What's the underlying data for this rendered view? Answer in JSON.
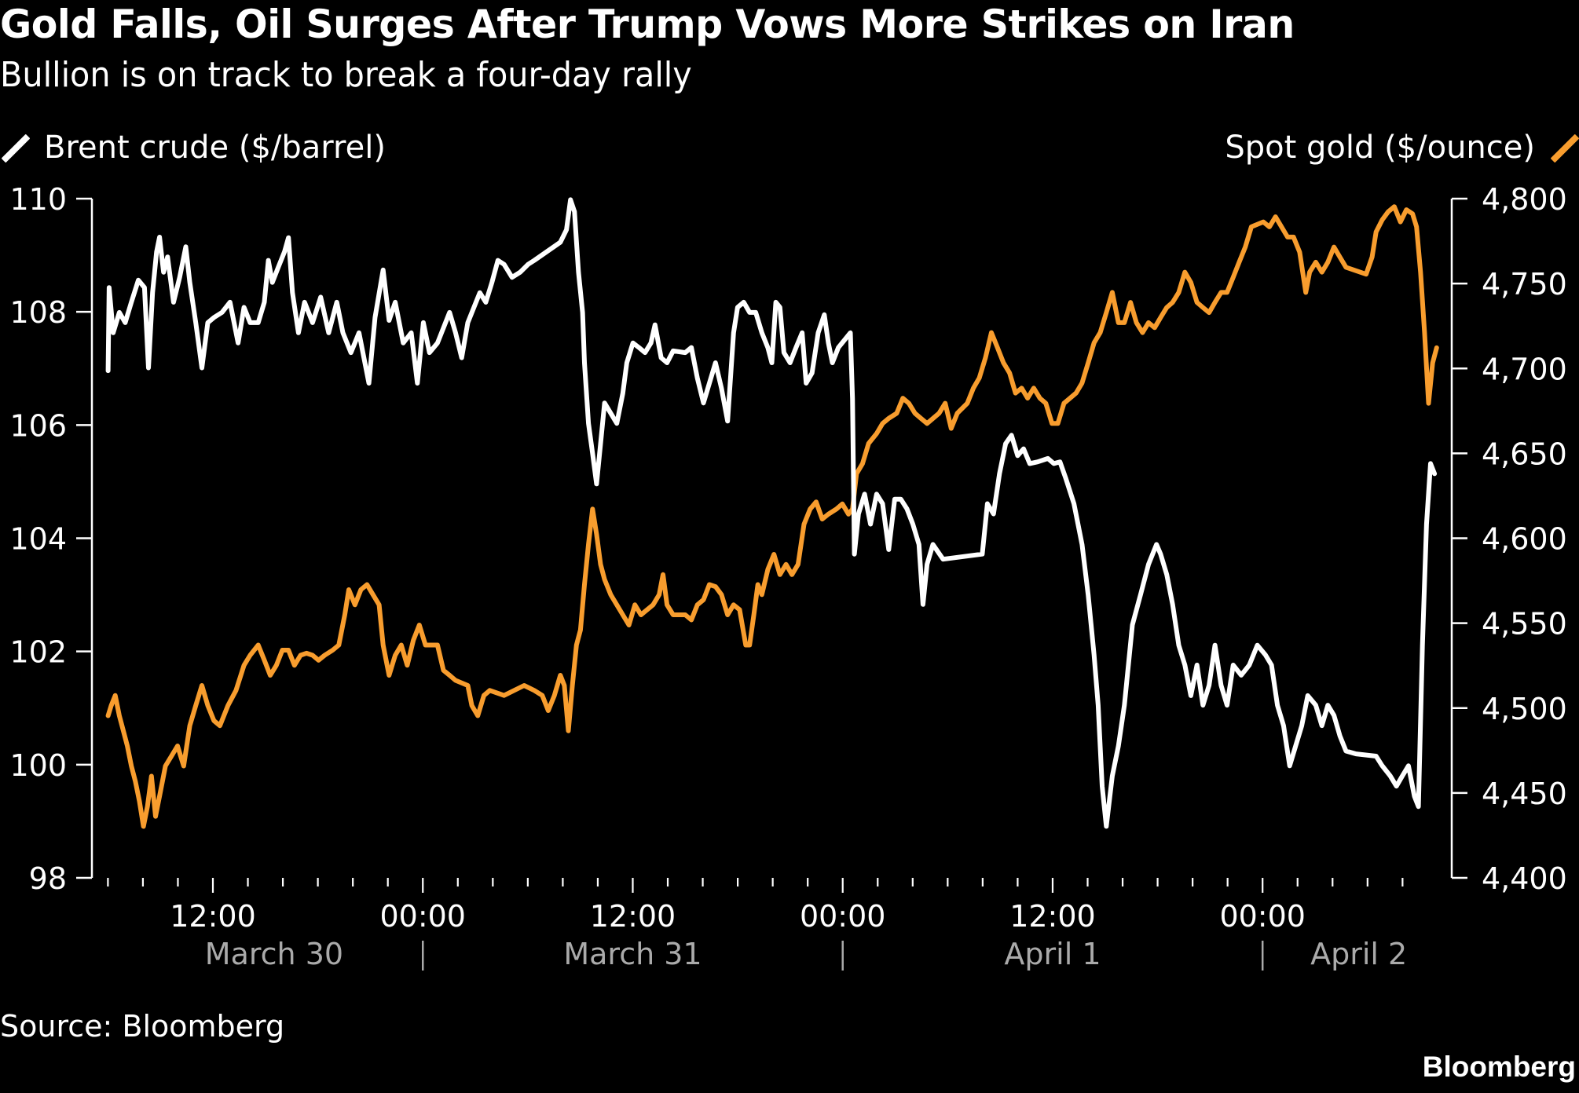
{
  "header": {
    "title": "Gold Falls, Oil Surges After Trump Vows More Strikes on Iran",
    "subtitle": "Bullion is on track to break a four-day rally"
  },
  "legend": {
    "left": {
      "label": "Brent crude ($/barrel)",
      "color": "#FFFFFF",
      "icon": "diagonal-line-swatch"
    },
    "right": {
      "label": "Spot gold ($/ounce)",
      "color": "#F89D2E",
      "icon": "diagonal-line-swatch"
    }
  },
  "footer": {
    "source": "Source: Bloomberg",
    "logo": "Bloomberg"
  },
  "chart_data": {
    "type": "line",
    "title": "Gold Falls, Oil Surges After Trump Vows More Strikes on Iran",
    "subtitle": "Bullion is on track to break a four-day rally",
    "x_unit": "hours since 00:00 March 30",
    "xlim": [
      5.2,
      83.0
    ],
    "x_ticks": [
      {
        "t": 12,
        "label": "12:00"
      },
      {
        "t": 24,
        "label": "00:00"
      },
      {
        "t": 36,
        "label": "12:00"
      },
      {
        "t": 48,
        "label": "00:00"
      },
      {
        "t": 60,
        "label": "12:00"
      },
      {
        "t": 72,
        "label": "00:00"
      }
    ],
    "minor_tick_step_hours": 2,
    "minor_tick_range": [
      6,
      80
    ],
    "date_labels": [
      {
        "t": 15.5,
        "label": "March 30"
      },
      {
        "t": 36,
        "label": "March 31"
      },
      {
        "t": 60,
        "label": "April 1"
      },
      {
        "t": 77.5,
        "label": "April 2"
      }
    ],
    "date_separators": [
      24,
      48,
      72
    ],
    "left_axis": {
      "label": "Brent crude ($/barrel)",
      "ylim": [
        98,
        110
      ],
      "ticks": [
        {
          "v": 98,
          "label": "98"
        },
        {
          "v": 100,
          "label": "100"
        },
        {
          "v": 102,
          "label": "102"
        },
        {
          "v": 104,
          "label": "104"
        },
        {
          "v": 106,
          "label": "106"
        },
        {
          "v": 108,
          "label": "108"
        },
        {
          "v": 110,
          "label": "110"
        }
      ]
    },
    "right_axis": {
      "label": "Spot gold ($/ounce)",
      "ylim": [
        4400,
        4800
      ],
      "ticks": [
        {
          "v": 4400,
          "label": "4,400"
        },
        {
          "v": 4450,
          "label": "4,450"
        },
        {
          "v": 4500,
          "label": "4,500"
        },
        {
          "v": 4550,
          "label": "4,550"
        },
        {
          "v": 4600,
          "label": "4,600"
        },
        {
          "v": 4650,
          "label": "4,650"
        },
        {
          "v": 4700,
          "label": "4,700"
        },
        {
          "v": 4750,
          "label": "4,750"
        },
        {
          "v": 4800,
          "label": "4,800"
        }
      ]
    },
    "grid": false,
    "legend_placement": "top",
    "series": [
      {
        "name": "Brent crude ($/barrel)",
        "axis": "left",
        "color": "#FFFFFF",
        "x": [
          6.01,
          6.07,
          6.3,
          6.65,
          6.99,
          7.34,
          7.74,
          8.09,
          8.32,
          8.55,
          8.78,
          8.95,
          9.18,
          9.41,
          9.75,
          10.1,
          10.45,
          10.68,
          11.02,
          11.37,
          11.71,
          12.06,
          12.52,
          12.98,
          13.44,
          13.78,
          14.13,
          14.59,
          14.94,
          15.17,
          15.4,
          15.74,
          16.09,
          16.32,
          16.55,
          16.89,
          17.24,
          17.7,
          18.16,
          18.62,
          19.08,
          19.43,
          19.89,
          20.35,
          20.92,
          21.27,
          21.73,
          22.07,
          22.42,
          22.88,
          23.34,
          23.69,
          24.03,
          24.38,
          24.84,
          25.53,
          25.87,
          26.22,
          26.57,
          27.26,
          27.6,
          27.95,
          28.29,
          28.64,
          29.1,
          29.56,
          30.02,
          30.37,
          31.86,
          32.21,
          32.44,
          32.67,
          32.9,
          33.13,
          33.24,
          33.47,
          33.7,
          33.93,
          34.16,
          34.39,
          34.74,
          35.09,
          35.43,
          35.66,
          36.01,
          36.35,
          36.7,
          37.04,
          37.27,
          37.62,
          37.96,
          38.31,
          39.0,
          39.35,
          39.69,
          40.04,
          40.38,
          40.73,
          41.07,
          41.42,
          41.76,
          41.99,
          42.34,
          42.68,
          43.03,
          43.38,
          43.72,
          43.95,
          44.18,
          44.41,
          44.64,
          44.99,
          45.33,
          45.68,
          45.91,
          46.25,
          46.6,
          46.95,
          47.18,
          47.41,
          47.75,
          48.44,
          48.56,
          48.67,
          48.9,
          49.25,
          49.59,
          49.94,
          50.28,
          50.63,
          50.97,
          51.32,
          51.67,
          52.01,
          52.36,
          52.59,
          52.82,
          53.16,
          53.74,
          55.98,
          56.27,
          56.62,
          56.96,
          57.31,
          57.65,
          58.0,
          58.34,
          58.69,
          59.15,
          59.73,
          60.07,
          60.42,
          60.76,
          61.22,
          61.68,
          62.03,
          62.37,
          62.6,
          62.83,
          63.07,
          63.41,
          63.76,
          64.1,
          64.56,
          65.02,
          65.48,
          65.94,
          66.17,
          66.52,
          66.86,
          67.21,
          67.56,
          67.9,
          68.25,
          68.59,
          68.94,
          69.28,
          69.63,
          69.97,
          70.32,
          70.78,
          71.24,
          71.7,
          72.16,
          72.51,
          72.85,
          73.2,
          73.55,
          73.89,
          74.24,
          74.58,
          75.04,
          75.39,
          75.73,
          76.08,
          76.42,
          76.77,
          77.34,
          78.49,
          78.84,
          79.3,
          79.65,
          79.99,
          80.34,
          80.68,
          80.91,
          81.14,
          81.37,
          81.6,
          81.83
        ],
        "values": [
          106.96,
          108.43,
          107.63,
          107.99,
          107.81,
          108.17,
          108.56,
          108.43,
          107.01,
          108.34,
          109.06,
          109.32,
          108.7,
          108.97,
          108.17,
          108.61,
          109.15,
          108.52,
          107.81,
          107.01,
          107.81,
          107.9,
          107.99,
          108.17,
          107.45,
          108.08,
          107.81,
          107.81,
          108.17,
          108.91,
          108.52,
          108.79,
          109.06,
          109.31,
          108.34,
          107.63,
          108.17,
          107.81,
          108.26,
          107.63,
          108.17,
          107.63,
          107.28,
          107.63,
          106.74,
          107.9,
          108.74,
          107.85,
          108.17,
          107.45,
          107.63,
          106.74,
          107.81,
          107.28,
          107.45,
          107.99,
          107.63,
          107.19,
          107.81,
          108.34,
          108.17,
          108.52,
          108.91,
          108.84,
          108.61,
          108.7,
          108.84,
          108.91,
          109.23,
          109.45,
          109.98,
          109.77,
          108.7,
          107.99,
          107.1,
          106.03,
          105.5,
          104.96,
          105.67,
          106.39,
          106.21,
          106.03,
          106.56,
          107.1,
          107.45,
          107.37,
          107.28,
          107.45,
          107.77,
          107.19,
          107.1,
          107.31,
          107.28,
          107.37,
          106.83,
          106.39,
          106.74,
          107.1,
          106.65,
          106.07,
          107.63,
          108.08,
          108.17,
          107.99,
          107.99,
          107.63,
          107.37,
          107.1,
          108.17,
          108.08,
          107.28,
          107.1,
          107.37,
          107.63,
          106.74,
          106.92,
          107.63,
          107.95,
          107.45,
          107.1,
          107.37,
          107.63,
          106.47,
          103.72,
          104.43,
          104.78,
          104.25,
          104.78,
          104.61,
          103.8,
          104.69,
          104.69,
          104.52,
          104.25,
          103.89,
          102.83,
          103.54,
          103.89,
          103.63,
          103.72,
          104.61,
          104.43,
          105.14,
          105.67,
          105.82,
          105.46,
          105.58,
          105.32,
          105.35,
          105.41,
          105.32,
          105.35,
          105.05,
          104.61,
          103.89,
          103.0,
          101.94,
          101.05,
          99.62,
          98.91,
          99.8,
          100.33,
          101.05,
          102.47,
          103.0,
          103.54,
          103.89,
          103.72,
          103.36,
          102.83,
          102.11,
          101.76,
          101.22,
          101.76,
          101.05,
          101.4,
          102.11,
          101.4,
          101.05,
          101.76,
          101.58,
          101.76,
          102.11,
          101.94,
          101.76,
          101.05,
          100.69,
          99.98,
          100.33,
          100.69,
          101.22,
          101.05,
          100.69,
          101.05,
          100.87,
          100.51,
          100.24,
          100.19,
          100.15,
          99.98,
          99.8,
          99.62,
          99.8,
          99.98,
          99.44,
          99.26,
          102.11,
          104.25,
          105.32,
          105.14
        ]
      },
      {
        "name": "Spot gold ($/ounce)",
        "axis": "right",
        "color": "#F89D2E",
        "x": [
          6.01,
          6.19,
          6.42,
          6.65,
          6.88,
          7.11,
          7.34,
          7.57,
          7.8,
          8.03,
          8.26,
          8.49,
          8.72,
          8.95,
          9.29,
          9.64,
          9.98,
          10.33,
          10.68,
          11.02,
          11.37,
          11.71,
          12.06,
          12.4,
          12.86,
          13.32,
          13.78,
          14.13,
          14.59,
          14.94,
          15.28,
          15.63,
          15.97,
          16.32,
          16.66,
          17.01,
          17.35,
          17.7,
          18.04,
          18.39,
          18.85,
          19.2,
          19.54,
          19.77,
          20.12,
          20.46,
          20.81,
          21.15,
          21.5,
          21.73,
          22.07,
          22.42,
          22.77,
          23.11,
          23.46,
          23.8,
          24.15,
          24.84,
          25.18,
          25.53,
          25.87,
          26.57,
          26.8,
          27.14,
          27.49,
          27.83,
          28.64,
          29.79,
          30.37,
          30.83,
          31.17,
          31.52,
          31.86,
          32.09,
          32.32,
          32.55,
          32.78,
          33.01,
          33.24,
          33.47,
          33.7,
          33.93,
          34.16,
          34.39,
          34.74,
          35.09,
          35.43,
          35.78,
          36.12,
          36.47,
          37.16,
          37.51,
          37.73,
          37.96,
          38.31,
          39.0,
          39.35,
          39.69,
          40.04,
          40.38,
          40.73,
          41.07,
          41.42,
          41.76,
          42.11,
          42.46,
          42.68,
          42.92,
          43.15,
          43.38,
          43.72,
          44.07,
          44.41,
          44.76,
          45.1,
          45.45,
          45.79,
          46.14,
          46.48,
          46.83,
          47.18,
          47.64,
          47.98,
          48.33,
          48.56,
          48.79,
          49.13,
          49.48,
          49.94,
          50.28,
          50.63,
          51.09,
          51.44,
          51.78,
          52.13,
          52.47,
          52.82,
          53.51,
          53.86,
          54.2,
          54.55,
          55.12,
          55.47,
          55.81,
          56.16,
          56.5,
          56.85,
          57.19,
          57.54,
          57.88,
          58.23,
          58.57,
          58.92,
          59.27,
          59.61,
          59.96,
          60.3,
          60.65,
          61.34,
          61.68,
          62.03,
          62.37,
          62.72,
          63.07,
          63.41,
          63.76,
          64.1,
          64.45,
          64.79,
          65.14,
          65.48,
          65.83,
          66.17,
          66.52,
          66.86,
          67.21,
          67.56,
          67.9,
          68.25,
          68.59,
          68.94,
          69.28,
          69.63,
          69.97,
          70.32,
          70.66,
          71.01,
          71.36,
          72.04,
          72.39,
          72.74,
          73.08,
          73.43,
          73.77,
          74.12,
          74.47,
          74.69,
          75.04,
          75.39,
          75.73,
          76.08,
          76.42,
          76.77,
          77.92,
          78.26,
          78.49,
          78.84,
          79.18,
          79.53,
          79.88,
          80.22,
          80.57,
          80.8,
          81.03,
          81.26,
          81.49,
          81.72,
          81.95
        ],
        "values": [
          4495.5,
          4501.5,
          4507.4,
          4495.5,
          4486.6,
          4477.7,
          4465.9,
          4456.9,
          4445.1,
          4430.3,
          4442.1,
          4459.9,
          4436.2,
          4448.1,
          4465.9,
          4471.8,
          4477.7,
          4465.9,
          4489.6,
          4501.5,
          4513.3,
          4501.5,
          4492.6,
          4489.6,
          4501.5,
          4510.4,
          4525.2,
          4531.1,
          4537.1,
          4528.2,
          4519.3,
          4525.2,
          4534.1,
          4534.1,
          4525.2,
          4531.1,
          4532.3,
          4531.1,
          4528.2,
          4531.1,
          4534.1,
          4537.1,
          4554.9,
          4569.7,
          4560.8,
          4569.7,
          4572.7,
          4566.8,
          4560.8,
          4537.1,
          4519.3,
          4531.1,
          4537.1,
          4525.2,
          4540.0,
          4548.9,
          4537.1,
          4537.1,
          4522.2,
          4519.3,
          4516.3,
          4513.3,
          4501.5,
          4495.5,
          4507.4,
          4510.4,
          4507.4,
          4513.3,
          4510.4,
          4507.4,
          4498.5,
          4507.4,
          4519.3,
          4513.3,
          4486.6,
          4513.3,
          4537.1,
          4546.0,
          4572.7,
          4596.4,
          4617.2,
          4602.4,
          4584.6,
          4575.7,
          4566.8,
          4560.8,
          4554.9,
          4548.9,
          4560.8,
          4554.9,
          4560.8,
          4566.8,
          4578.6,
          4560.8,
          4554.9,
          4554.9,
          4551.9,
          4560.8,
          4563.8,
          4572.7,
          4571.5,
          4566.8,
          4554.9,
          4560.8,
          4557.9,
          4537.1,
          4537.1,
          4554.9,
          4572.7,
          4566.8,
          4581.6,
          4590.5,
          4578.6,
          4584.6,
          4578.6,
          4584.6,
          4608.3,
          4617.2,
          4621.4,
          4611.3,
          4614.2,
          4617.2,
          4620.2,
          4614.2,
          4617.2,
          4638.0,
          4643.9,
          4655.8,
          4661.7,
          4667.6,
          4670.6,
          4673.6,
          4682.5,
          4679.5,
          4673.6,
          4670.6,
          4667.6,
          4673.6,
          4679.5,
          4664.7,
          4673.6,
          4679.5,
          4688.4,
          4694.4,
          4706.2,
          4721.1,
          4712.2,
          4703.3,
          4697.3,
          4685.5,
          4688.4,
          4682.5,
          4688.4,
          4682.5,
          4679.5,
          4667.6,
          4667.6,
          4679.5,
          4685.5,
          4691.4,
          4703.3,
          4715.1,
          4721.1,
          4732.9,
          4744.8,
          4727.0,
          4727.0,
          4738.9,
          4727.0,
          4721.1,
          4727.0,
          4724.0,
          4730.0,
          4735.9,
          4738.9,
          4744.8,
          4756.7,
          4750.7,
          4738.9,
          4735.9,
          4732.9,
          4738.9,
          4744.8,
          4744.8,
          4753.7,
          4762.6,
          4771.5,
          4783.4,
          4786.3,
          4783.4,
          4789.3,
          4783.4,
          4777.4,
          4777.4,
          4768.5,
          4744.8,
          4756.7,
          4762.6,
          4756.7,
          4762.6,
          4771.5,
          4765.6,
          4759.6,
          4755.5,
          4765.6,
          4780.4,
          4787.5,
          4792.3,
          4795.3,
          4786.3,
          4793.5,
          4791.1,
          4783.4,
          4756.7,
          4721.1,
          4679.5,
          4703.3,
          4712.2
        ]
      }
    ]
  }
}
